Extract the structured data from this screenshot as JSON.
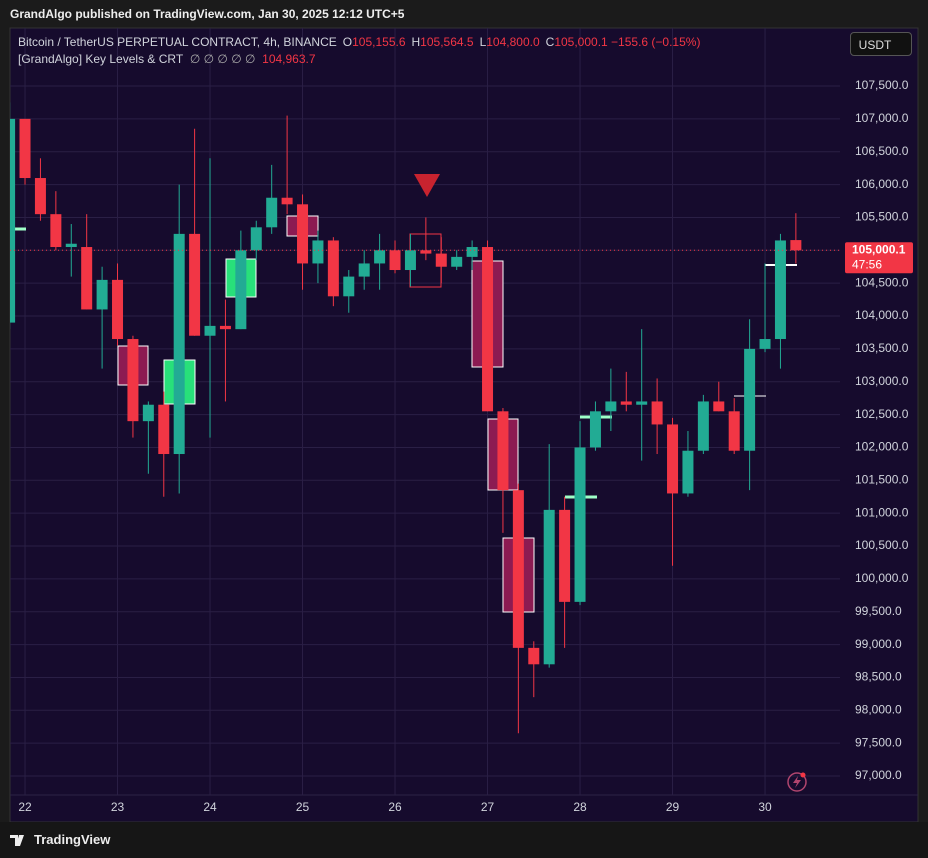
{
  "header": {
    "publisher": "GrandAlgo published on TradingView.com, Jan 30, 2025 12:12 UTC+5"
  },
  "footer": {
    "brand": "TradingView"
  },
  "currency": "USDT",
  "chart_data": {
    "type": "candlestick",
    "title": "Bitcoin / TetherUS PERPETUAL CONTRACT, 4h, BINANCE",
    "ohlc_legend": [
      {
        "key": "O",
        "value": "105,155.6"
      },
      {
        "key": "H",
        "value": "105,564.5"
      },
      {
        "key": "L",
        "value": "104,800.0"
      },
      {
        "key": "C",
        "value": "105,000.1"
      }
    ],
    "change": "−155.6 (−0.15%)",
    "indicator": {
      "name": "[GrandAlgo] Key Levels & CRT",
      "params": "∅ ∅ ∅ ∅ ∅",
      "value": "104,963.7"
    },
    "last_price_label": "105,000.1",
    "countdown": "47:56",
    "categories": [
      null,
      "22",
      null,
      null,
      null,
      null,
      null,
      "23",
      null,
      null,
      null,
      null,
      null,
      "24",
      null,
      null,
      null,
      null,
      null,
      "25",
      null,
      null,
      null,
      null,
      null,
      "26",
      null,
      null,
      null,
      null,
      null,
      "27",
      null,
      null,
      null,
      null,
      null,
      "28",
      null,
      null,
      null,
      null,
      null,
      "29",
      null,
      null,
      null,
      null,
      null,
      "30",
      null,
      null
    ],
    "open": [
      103900,
      107000,
      106100,
      105550,
      105050,
      105050,
      104100,
      104550,
      103650,
      102400,
      102650,
      101900,
      105250,
      103700,
      103850,
      103800,
      105000,
      105350,
      105800,
      105700,
      104800,
      105150,
      104300,
      104600,
      104800,
      105000,
      104700,
      105000,
      104950,
      104750,
      104900,
      105050,
      102550,
      101350,
      98950,
      98700,
      101050,
      99650,
      102000,
      102550,
      102700,
      102650,
      102700,
      102350,
      101300,
      101950,
      102700,
      102550,
      101950,
      103500,
      103650,
      105155.6
    ],
    "high": [
      107250,
      107000,
      106400,
      105900,
      105400,
      105550,
      104750,
      104800,
      103700,
      102700,
      102850,
      106000,
      106850,
      106400,
      104250,
      105300,
      105450,
      106300,
      107050,
      105850,
      105300,
      105200,
      104700,
      105000,
      105250,
      105150,
      105250,
      105500,
      105200,
      105000,
      105150,
      105150,
      102600,
      101450,
      99050,
      102050,
      101250,
      102400,
      102700,
      103200,
      103150,
      103800,
      103050,
      102450,
      102250,
      102800,
      103000,
      102750,
      103950,
      104800,
      105250,
      105564.5
    ],
    "low": [
      103800,
      106000,
      105450,
      105000,
      104600,
      104100,
      103200,
      103550,
      102150,
      101600,
      101250,
      101300,
      103700,
      102150,
      102700,
      103800,
      104850,
      105250,
      105550,
      104400,
      104500,
      104150,
      104050,
      104400,
      104400,
      104650,
      104450,
      104850,
      104500,
      104700,
      104700,
      102550,
      100700,
      97650,
      98200,
      98650,
      98950,
      99600,
      101950,
      102250,
      102550,
      101800,
      101900,
      100200,
      101250,
      101900,
      102550,
      101900,
      101350,
      103450,
      103200,
      104800
    ],
    "close": [
      107000,
      106100,
      105550,
      105050,
      105100,
      104100,
      104550,
      103650,
      102400,
      102650,
      101900,
      105250,
      103700,
      103850,
      103800,
      105000,
      105350,
      105800,
      105700,
      104800,
      105150,
      104300,
      104600,
      104800,
      105000,
      104700,
      105000,
      104950,
      104750,
      104900,
      105050,
      102550,
      101350,
      98950,
      98700,
      101050,
      99650,
      102000,
      102550,
      102700,
      102650,
      102700,
      102350,
      101300,
      101950,
      102700,
      102550,
      101950,
      103500,
      103650,
      105150,
      105000.1
    ],
    "up_color": "#22ab94",
    "down_color": "#f23645",
    "grid": true,
    "ylim": [
      96711,
      108383
    ],
    "yticks": [
      {
        "value": 97000,
        "label": "97,000.0"
      },
      {
        "value": 97500,
        "label": "97,500.0"
      },
      {
        "value": 98000,
        "label": "98,000.0"
      },
      {
        "value": 98500,
        "label": "98,500.0"
      },
      {
        "value": 99000,
        "label": "99,000.0"
      },
      {
        "value": 99500,
        "label": "99,500.0"
      },
      {
        "value": 100000,
        "label": "100,000.0"
      },
      {
        "value": 100500,
        "label": "100,500.0"
      },
      {
        "value": 101000,
        "label": "101,000.0"
      },
      {
        "value": 101500,
        "label": "101,500.0"
      },
      {
        "value": 102000,
        "label": "102,000.0"
      },
      {
        "value": 102500,
        "label": "102,500.0"
      },
      {
        "value": 103000,
        "label": "103,000.0"
      },
      {
        "value": 103500,
        "label": "103,500.0"
      },
      {
        "value": 104000,
        "label": "104,000.0"
      },
      {
        "value": 104500,
        "label": "104,500.0"
      },
      {
        "value": 105000,
        "label": "105,000.0"
      },
      {
        "value": 105500,
        "label": "105,500.0"
      },
      {
        "value": 106000,
        "label": "106,000.0"
      },
      {
        "value": 106500,
        "label": "106,500.0"
      },
      {
        "value": 107000,
        "label": "107,000.0"
      },
      {
        "value": 107500,
        "label": "107,500.0"
      }
    ]
  }
}
